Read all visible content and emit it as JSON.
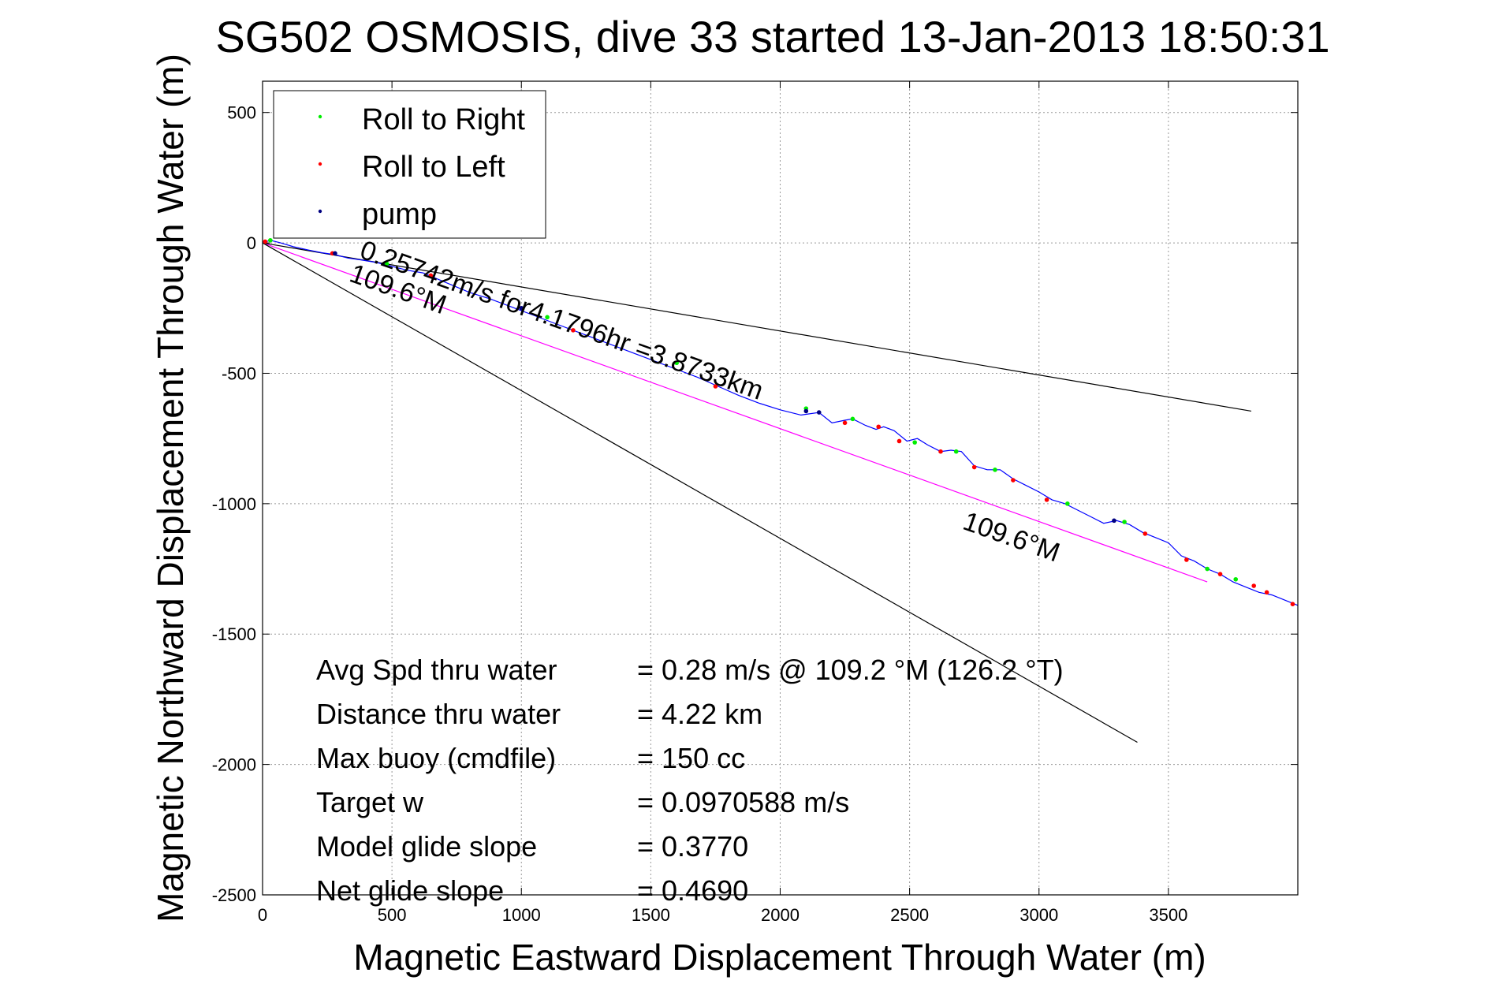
{
  "chart_data": {
    "type": "line",
    "title": "SG502 OSMOSIS, dive 33 started 13-Jan-2013 18:50:31",
    "xlabel": "Magnetic Eastward Displacement Through Water (m)",
    "ylabel": "Magnetic Northward Displacement Through Water (m)",
    "xlim": [
      0,
      4000
    ],
    "ylim": [
      -2500,
      620
    ],
    "xticks": [
      0,
      500,
      1000,
      1500,
      2000,
      2500,
      3000,
      3500
    ],
    "yticks": [
      500,
      0,
      -500,
      -1000,
      -1500,
      -2000,
      -2500
    ],
    "grid": true,
    "legend_position": "top-left",
    "legend": [
      {
        "label": "Roll to Right",
        "color": "#00ee00"
      },
      {
        "label": "Roll to Left",
        "color": "#ff0000"
      },
      {
        "label": "pump",
        "color": "#000080"
      }
    ],
    "track": {
      "color": "#0000ff",
      "x": [
        0,
        30,
        70,
        120,
        180,
        230,
        280,
        330,
        380,
        440,
        500,
        560,
        620,
        680,
        740,
        800,
        880,
        960,
        1040,
        1120,
        1200,
        1280,
        1360,
        1440,
        1520,
        1600,
        1680,
        1760,
        1840,
        1920,
        2000,
        2080,
        2150,
        2200,
        2250,
        2280,
        2330,
        2370,
        2400,
        2440,
        2490,
        2530,
        2570,
        2620,
        2660,
        2700,
        2750,
        2800,
        2850,
        2900,
        2950,
        3000,
        3050,
        3100,
        3150,
        3200,
        3250,
        3300,
        3350,
        3400,
        3450,
        3500,
        3550,
        3600,
        3650,
        3700,
        3750,
        3800,
        3850,
        3900,
        3950,
        4000
      ],
      "y": [
        0,
        10,
        0,
        -15,
        -28,
        -38,
        -45,
        -58,
        -65,
        -75,
        -90,
        -105,
        -115,
        -140,
        -165,
        -190,
        -215,
        -245,
        -275,
        -305,
        -335,
        -365,
        -395,
        -425,
        -455,
        -485,
        -515,
        -550,
        -585,
        -615,
        -640,
        -660,
        -650,
        -690,
        -680,
        -675,
        -700,
        -715,
        -705,
        -720,
        -760,
        -750,
        -775,
        -800,
        -795,
        -800,
        -855,
        -870,
        -870,
        -905,
        -930,
        -955,
        -985,
        -1000,
        -1025,
        -1050,
        -1075,
        -1065,
        -1080,
        -1110,
        -1130,
        -1150,
        -1200,
        -1220,
        -1250,
        -1270,
        -1300,
        -1320,
        -1340,
        -1350,
        -1370,
        -1390
      ]
    },
    "roll_right_points": {
      "color": "#00ee00",
      "x": [
        30,
        480,
        1100,
        1600,
        2100,
        2280,
        2520,
        2680,
        2830,
        3110,
        3330,
        3650,
        3760
      ],
      "y": [
        10,
        -80,
        -285,
        -460,
        -635,
        -675,
        -765,
        -800,
        -870,
        -1000,
        -1070,
        -1250,
        -1290
      ]
    },
    "roll_left_points": {
      "color": "#ff0000",
      "x": [
        10,
        270,
        650,
        1200,
        1750,
        2250,
        2380,
        2460,
        2620,
        2750,
        2900,
        3030,
        3410,
        3570,
        3700,
        3830,
        3880,
        3980
      ],
      "y": [
        5,
        -40,
        -125,
        -335,
        -550,
        -690,
        -705,
        -760,
        -800,
        -860,
        -910,
        -985,
        -1115,
        -1215,
        -1270,
        -1315,
        -1340,
        -1385
      ]
    },
    "pump_points": {
      "color": "#000080",
      "x": [
        280,
        1000,
        2100,
        2150,
        3290
      ],
      "y": [
        -40,
        -250,
        -645,
        -650,
        -1065
      ]
    },
    "reference_lines": [
      {
        "name": "heading_line",
        "color": "#ff00ff",
        "x": [
          0,
          3650
        ],
        "y": [
          0,
          -1300
        ]
      },
      {
        "name": "upper_bound",
        "color": "#000000",
        "x": [
          0,
          3820
        ],
        "y": [
          0,
          -645
        ]
      },
      {
        "name": "lower_bound",
        "color": "#000000",
        "x": [
          0,
          3380
        ],
        "y": [
          0,
          -1915
        ]
      }
    ],
    "annotations": [
      {
        "text": "0.25742m/s for4.1796hr =3.8733km",
        "x": 370,
        "y": -55,
        "rotation": 19.6
      },
      {
        "text": "109.6°M",
        "x": 330,
        "y": -145,
        "rotation": 19.6
      },
      {
        "text": "109.6°M",
        "x": 2700,
        "y": -1095,
        "rotation": 19.6
      }
    ],
    "stats": [
      {
        "label": "Avg Spd thru water",
        "value": "=  0.28 m/s @ 109.2 °M (126.2 °T)"
      },
      {
        "label": "Distance thru water",
        "value": "=  4.22 km"
      },
      {
        "label": "Max buoy (cmdfile)",
        "value": "= 150 cc"
      },
      {
        "label": "Target w",
        "value": "= 0.0970588 m/s"
      },
      {
        "label": "Model glide slope",
        "value": "= 0.3770"
      },
      {
        "label": "Net glide slope",
        "value": "= 0.4690"
      }
    ]
  }
}
